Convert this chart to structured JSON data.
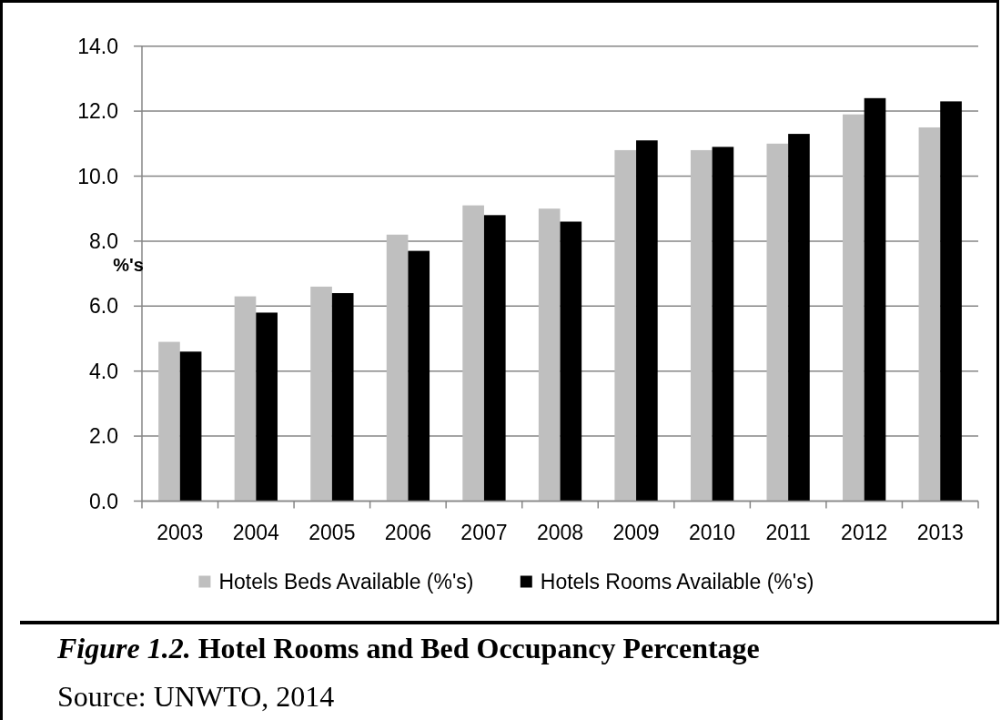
{
  "chart_data": {
    "type": "bar",
    "title": "Figure 1.2. Hotel Rooms and Bed Occupancy Percentage",
    "ylabel": "%'s",
    "categories": [
      "2003",
      "2004",
      "2005",
      "2006",
      "2007",
      "2008",
      "2009",
      "2010",
      "2011",
      "2012",
      "2013"
    ],
    "series": [
      {
        "name": "Hotels Beds Available (%'s)",
        "color": "#bfbfbf",
        "values": [
          4.9,
          6.3,
          6.6,
          8.2,
          9.1,
          9.0,
          10.8,
          10.8,
          11.0,
          11.9,
          11.5
        ]
      },
      {
        "name": "Hotels Rooms Available (%'s)",
        "color": "#000000",
        "values": [
          4.6,
          5.8,
          6.4,
          7.7,
          8.8,
          8.6,
          11.1,
          10.9,
          11.3,
          12.4,
          12.3
        ]
      }
    ],
    "ylim": [
      0,
      14
    ],
    "yticks": [
      {
        "value": 0,
        "label": "0.0"
      },
      {
        "value": 2,
        "label": "2.0"
      },
      {
        "value": 4,
        "label": "4.0"
      },
      {
        "value": 6,
        "label": "6.0"
      },
      {
        "value": 8,
        "label": "8.0"
      },
      {
        "value": 10,
        "label": "10.0"
      },
      {
        "value": 12,
        "label": "12.0"
      },
      {
        "value": 14,
        "label": "14.0"
      }
    ],
    "grid": "y",
    "legend": "bottom",
    "annotations": [
      "Source: UNWTO, 2014"
    ]
  }
}
